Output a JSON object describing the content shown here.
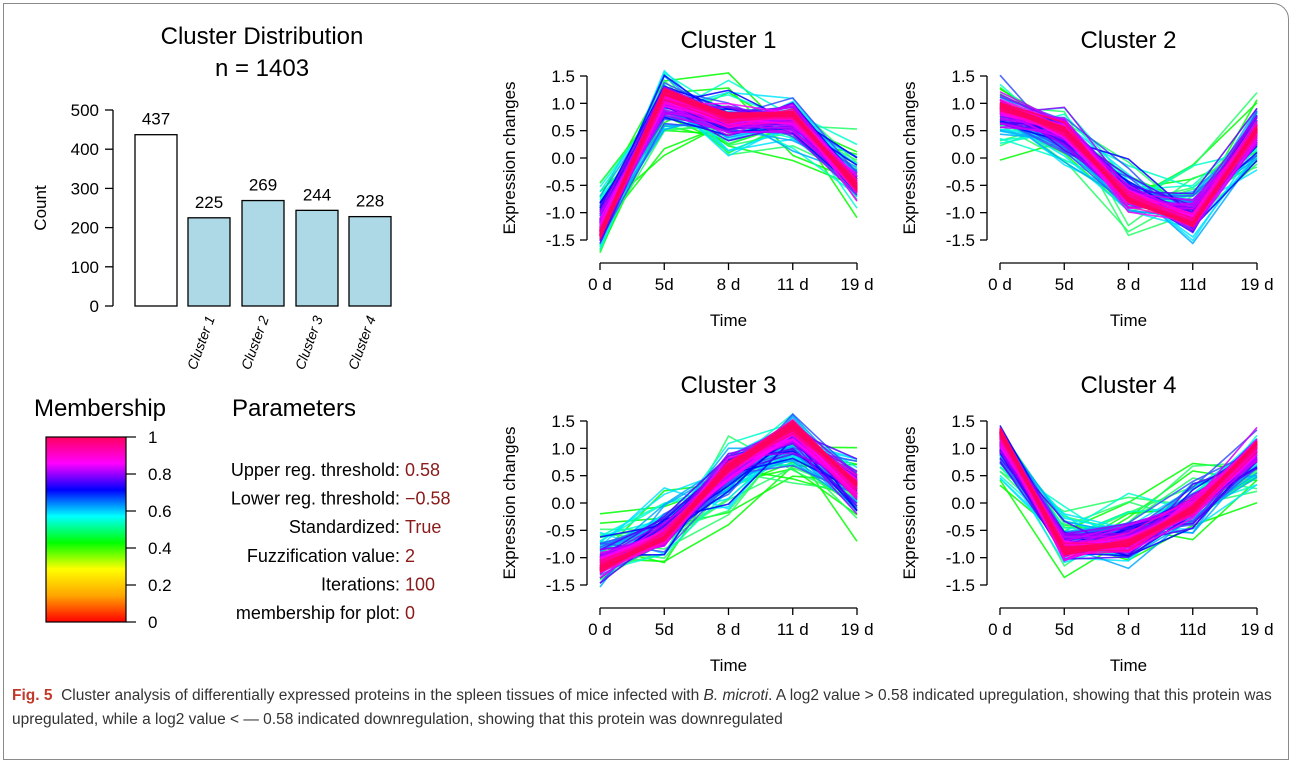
{
  "caption": {
    "label": "Fig. 5",
    "part1": "Cluster analysis of differentially expressed proteins in the spleen tissues of mice infected with ",
    "species": "B. microti",
    "part2": ". A log2 value > 0.58 indicated upregulation, showing that this protein was upregulated, while a log2 value < — 0.58 indicated downregulation, showing that this protein was downregulated"
  },
  "colors": {
    "bar_fill": "#add8e6",
    "total_bar_fill": "#ffffff",
    "param_value": "#8b1a1a",
    "membership_gradient": [
      "#ff0000",
      "#ffa500",
      "#ffff00",
      "#00ff00",
      "#00ffff",
      "#0000ff",
      "#ff00ff",
      "#ff0060"
    ]
  },
  "chart_data": [
    {
      "type": "bar",
      "title": "Cluster Distribution",
      "subtitle": "n = 1403",
      "ylabel": "Count",
      "ylim": [
        0,
        500
      ],
      "yticks": [
        0,
        100,
        200,
        300,
        400,
        500
      ],
      "categories": [
        "",
        "Cluster 1",
        "Cluster 2",
        "Cluster 3",
        "Cluster 4"
      ],
      "values": [
        437,
        225,
        269,
        244,
        228
      ],
      "data_labels": [
        "437",
        "225",
        "269",
        "244",
        "228"
      ]
    },
    {
      "type": "line",
      "title": "Cluster 1",
      "xlabel": "Time",
      "ylabel": "Expression changes",
      "x": [
        "0 d",
        "5d",
        "8 d",
        "11 d",
        "19 d"
      ],
      "ylim": [
        -1.5,
        1.5
      ],
      "yticks": [
        "1.5",
        "1.0",
        "0.5",
        "0.0",
        "-0.5",
        "-1.0",
        "-1.5"
      ],
      "centroid": [
        -1.3,
        1.1,
        0.7,
        0.75,
        -0.5
      ]
    },
    {
      "type": "line",
      "title": "Cluster 2",
      "xlabel": "Time",
      "ylabel": "Expression changes",
      "x": [
        "0 d",
        "5d",
        "8 d",
        "11d",
        "19 d"
      ],
      "ylim": [
        -1.5,
        1.5
      ],
      "yticks": [
        "1.5",
        "1.0",
        "0.5",
        "0.0",
        "-0.5",
        "-1.0",
        "-1.5"
      ],
      "centroid": [
        0.9,
        0.5,
        -0.7,
        -1.1,
        0.5
      ]
    },
    {
      "type": "line",
      "title": "Cluster 3",
      "xlabel": "Time",
      "ylabel": "Expression changes",
      "x": [
        "0 d",
        "5d",
        "8 d",
        "11 d",
        "19 d"
      ],
      "ylim": [
        -1.5,
        1.5
      ],
      "yticks": [
        "1.5",
        "1.0",
        "0.5",
        "0.0",
        "-0.5",
        "-1.0",
        "-1.5"
      ],
      "centroid": [
        -1.1,
        -0.6,
        0.6,
        1.3,
        0.3
      ]
    },
    {
      "type": "line",
      "title": "Cluster 4",
      "xlabel": "Time",
      "ylabel": "Expression changes",
      "x": [
        "0 d",
        "5d",
        "8 d",
        "11d",
        "19 d"
      ],
      "ylim": [
        -1.5,
        1.5
      ],
      "yticks": [
        "1.5",
        "1.0",
        "0.5",
        "0.0",
        "-0.5",
        "-1.0",
        "-1.5"
      ],
      "centroid": [
        1.2,
        -0.8,
        -0.7,
        -0.1,
        1.0
      ]
    }
  ],
  "membership": {
    "title": "Membership",
    "ticks": [
      "1",
      "0.8",
      "0.6",
      "0.4",
      "0.2",
      "0"
    ]
  },
  "parameters": {
    "title": "Parameters",
    "rows": [
      {
        "label": "Upper reg. threshold:",
        "value": "0.58"
      },
      {
        "label": "Lower reg. threshold:",
        "value": "−0.58"
      },
      {
        "label": "Standardized:",
        "value": "True"
      },
      {
        "label": "Fuzzification value:",
        "value": "2"
      },
      {
        "label": "Iterations:",
        "value": "100"
      },
      {
        "label": "membership for plot:",
        "value": "0"
      }
    ]
  }
}
